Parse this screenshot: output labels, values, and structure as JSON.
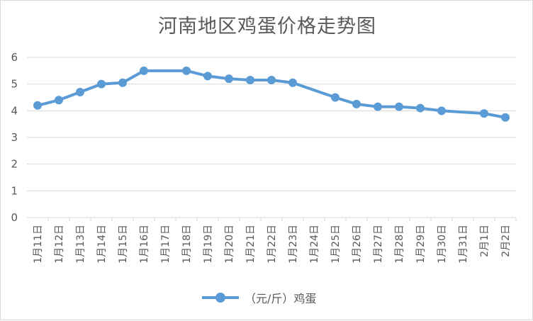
{
  "chart_data": {
    "type": "line",
    "title": "河南地区鸡蛋价格走势图",
    "xlabel": "",
    "ylabel": "",
    "ylim": [
      0,
      6
    ],
    "yticks": [
      0,
      1,
      2,
      3,
      4,
      5,
      6
    ],
    "categories": [
      "1月11日",
      "1月12日",
      "1月13日",
      "1月14日",
      "1月15日",
      "1月16日",
      "1月17日",
      "1月18日",
      "1月19日",
      "1月20日",
      "1月21日",
      "1月22日",
      "1月23日",
      "1月24日",
      "1月25日",
      "1月26日",
      "1月27日",
      "1月28日",
      "1月29日",
      "1月30日",
      "1月31日",
      "2月1日",
      "2月2日"
    ],
    "series": [
      {
        "name": "（元/斤）鸡蛋",
        "color": "#5b9bd5",
        "values": [
          4.2,
          4.4,
          4.7,
          5.0,
          5.05,
          5.5,
          null,
          5.5,
          5.3,
          5.2,
          5.15,
          5.15,
          5.05,
          null,
          4.5,
          4.25,
          4.15,
          4.15,
          4.1,
          4.0,
          null,
          3.9,
          3.75
        ]
      }
    ],
    "grid": true,
    "legend_position": "bottom"
  }
}
